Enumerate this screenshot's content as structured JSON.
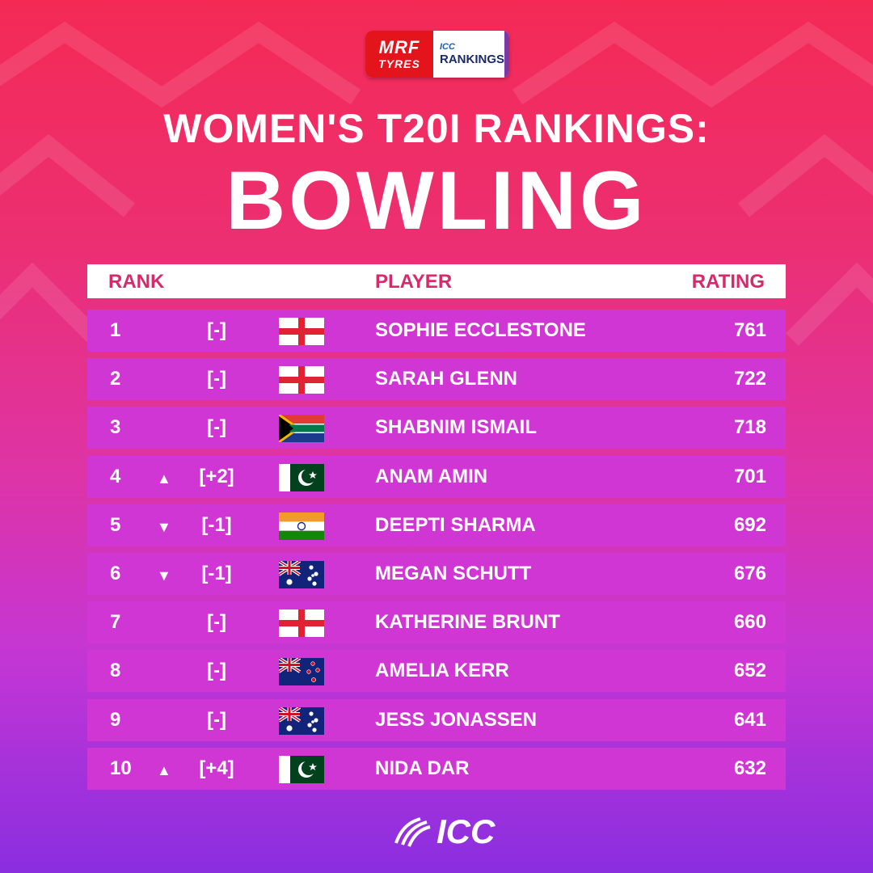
{
  "sponsor": {
    "brand_top": "MRF",
    "brand_bottom": "TYRES",
    "icc_small": "ICC",
    "rankings": "RANKINGS"
  },
  "title": {
    "line1": "WOMEN'S T20I RANKINGS:",
    "line2": "BOWLING"
  },
  "table": {
    "headers": {
      "rank": "RANK",
      "player": "PLAYER",
      "rating": "RATING"
    },
    "rows": [
      {
        "rank": "1",
        "arrow": "",
        "change": "[-]",
        "flag": "england",
        "player": "SOPHIE ECCLESTONE",
        "rating": "761"
      },
      {
        "rank": "2",
        "arrow": "",
        "change": "[-]",
        "flag": "england",
        "player": "SARAH GLENN",
        "rating": "722"
      },
      {
        "rank": "3",
        "arrow": "",
        "change": "[-]",
        "flag": "south-africa",
        "player": "SHABNIM ISMAIL",
        "rating": "718"
      },
      {
        "rank": "4",
        "arrow": "▲",
        "change": "[+2]",
        "flag": "pakistan",
        "player": "ANAM AMIN",
        "rating": "701"
      },
      {
        "rank": "5",
        "arrow": "▼",
        "change": "[-1]",
        "flag": "india",
        "player": "DEEPTI SHARMA",
        "rating": "692"
      },
      {
        "rank": "6",
        "arrow": "▼",
        "change": "[-1]",
        "flag": "australia",
        "player": "MEGAN SCHUTT",
        "rating": "676"
      },
      {
        "rank": "7",
        "arrow": "",
        "change": "[-]",
        "flag": "england",
        "player": "KATHERINE BRUNT",
        "rating": "660"
      },
      {
        "rank": "8",
        "arrow": "",
        "change": "[-]",
        "flag": "new-zealand",
        "player": "AMELIA KERR",
        "rating": "652"
      },
      {
        "rank": "9",
        "arrow": "",
        "change": "[-]",
        "flag": "australia",
        "player": "JESS JONASSEN",
        "rating": "641"
      },
      {
        "rank": "10",
        "arrow": "▲",
        "change": "[+4]",
        "flag": "pakistan",
        "player": "NIDA DAR",
        "rating": "632"
      }
    ]
  },
  "footer": {
    "logo_text": "ICC"
  }
}
